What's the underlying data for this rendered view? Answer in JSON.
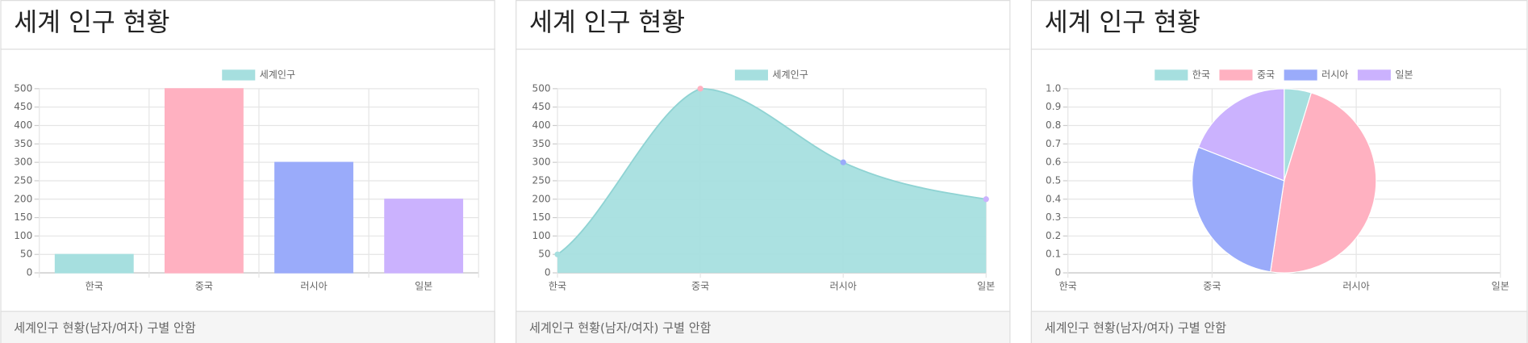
{
  "cards": [
    {
      "title": "세계 인구 현황",
      "footer": "세계인구 현황(남자/여자) 구별 안함"
    },
    {
      "title": "세계 인구 현황",
      "footer": "세계인구 현황(남자/여자) 구별 안함"
    },
    {
      "title": "세계 인구 현황",
      "footer": "세계인구 현황(남자/여자) 구별 안함"
    }
  ],
  "chart_data": [
    {
      "type": "bar",
      "categories": [
        "한국",
        "중국",
        "러시아",
        "일본"
      ],
      "series": [
        {
          "name": "세계인구",
          "color": "#a6dfdf",
          "colors": [
            "#a6dfdf",
            "#ffb1c1",
            "#9aabfa",
            "#cbb2fe"
          ],
          "values": [
            50,
            500,
            300,
            200
          ]
        }
      ],
      "ylim": [
        0,
        500
      ],
      "yticks": [
        0,
        50,
        100,
        150,
        200,
        250,
        300,
        350,
        400,
        450,
        500
      ],
      "grid": true
    },
    {
      "type": "line",
      "categories": [
        "한국",
        "중국",
        "러시아",
        "일본"
      ],
      "series": [
        {
          "name": "세계인구",
          "color": "#a6dfdf",
          "colors": [
            "#a6dfdf",
            "#ffb1c1",
            "#9aabfa",
            "#cbb2fe"
          ],
          "values": [
            50,
            500,
            300,
            200
          ]
        }
      ],
      "fill": true,
      "ylim": [
        0,
        500
      ],
      "yticks": [
        0,
        50,
        100,
        150,
        200,
        250,
        300,
        350,
        400,
        450,
        500
      ],
      "grid": true
    },
    {
      "type": "pie",
      "categories": [
        "한국",
        "중국",
        "러시아",
        "일본"
      ],
      "values": [
        50,
        500,
        300,
        200
      ],
      "colors": [
        "#a6dfdf",
        "#ffb1c1",
        "#9aabfa",
        "#cbb2fe"
      ],
      "ylim": [
        0,
        1
      ],
      "yticks": [
        0,
        0.1,
        0.2,
        0.3,
        0.4,
        0.5,
        0.6,
        0.7,
        0.8,
        0.9,
        {
          "value": 1,
          "label": "1.0"
        }
      ],
      "grid": true
    }
  ]
}
